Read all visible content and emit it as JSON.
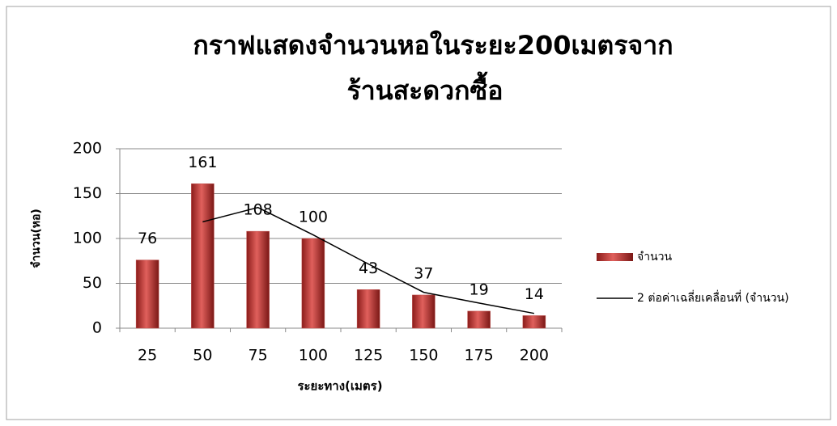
{
  "chart_data": {
    "type": "bar",
    "title": [
      "กราฟแสดงจำนวนหอในระยะ200เมตรจาก",
      "ร้านสะดวกซื้อ"
    ],
    "x_label": "ระยะทาง(เมตร)",
    "y_label": "จำนวน(หอ)",
    "categories": [
      "25",
      "50",
      "75",
      "100",
      "125",
      "150",
      "175",
      "200"
    ],
    "series": [
      {
        "name": "จำนวน",
        "type": "bar",
        "color": "#c0504d",
        "values": [
          76,
          161,
          108,
          100,
          43,
          37,
          19,
          14
        ]
      },
      {
        "name": "2 ต่อค่าเฉลี่ยเคลื่อนที่ (จำนวน)",
        "type": "line",
        "color": "#000000",
        "values": [
          null,
          118.5,
          134.5,
          104,
          71.5,
          40,
          28,
          16.5
        ]
      }
    ],
    "ylim": [
      0,
      200
    ],
    "yticks": [
      0,
      50,
      100,
      150,
      200
    ],
    "grid": true,
    "legend": "right"
  }
}
